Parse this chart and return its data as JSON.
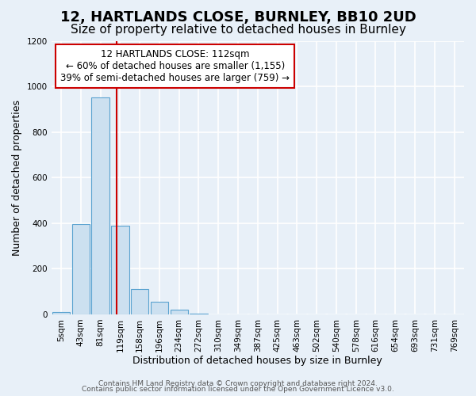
{
  "title1": "12, HARTLANDS CLOSE, BURNLEY, BB10 2UD",
  "title2": "Size of property relative to detached houses in Burnley",
  "xlabel": "Distribution of detached houses by size in Burnley",
  "ylabel": "Number of detached properties",
  "bin_labels": [
    "5sqm",
    "43sqm",
    "81sqm",
    "119sqm",
    "158sqm",
    "196sqm",
    "234sqm",
    "272sqm",
    "310sqm",
    "349sqm",
    "387sqm",
    "425sqm",
    "463sqm",
    "502sqm",
    "540sqm",
    "578sqm",
    "616sqm",
    "654sqm",
    "693sqm",
    "731sqm",
    "769sqm"
  ],
  "bar_heights": [
    10,
    395,
    950,
    390,
    110,
    55,
    22,
    5,
    0,
    0,
    0,
    0,
    0,
    0,
    0,
    0,
    0,
    0,
    0,
    0,
    0
  ],
  "bar_color": "#cce0f0",
  "bar_edgecolor": "#5ba3d0",
  "property_line_color": "#cc0000",
  "property_sqm": 112,
  "bin_start_sqm": [
    5,
    43,
    81,
    119,
    158,
    196,
    234,
    272,
    310,
    349,
    387,
    425,
    463,
    502,
    540,
    578,
    616,
    654,
    693,
    731,
    769
  ],
  "annotation_line1": "12 HARTLANDS CLOSE: 112sqm",
  "annotation_line2": "← 60% of detached houses are smaller (1,155)",
  "annotation_line3": "39% of semi-detached houses are larger (759) →",
  "annotation_box_color": "#ffffff",
  "annotation_box_edgecolor": "#cc0000",
  "ylim": [
    0,
    1200
  ],
  "yticks": [
    0,
    200,
    400,
    600,
    800,
    1000,
    1200
  ],
  "footer1": "Contains HM Land Registry data © Crown copyright and database right 2024.",
  "footer2": "Contains public sector information licensed under the Open Government Licence v3.0.",
  "background_color": "#e8f0f8",
  "plot_background_color": "#e8f0f8",
  "grid_color": "#ffffff",
  "title_fontsize": 13,
  "subtitle_fontsize": 11,
  "axis_label_fontsize": 9,
  "tick_fontsize": 7.5,
  "annotation_fontsize": 8.5,
  "footer_fontsize": 6.5
}
